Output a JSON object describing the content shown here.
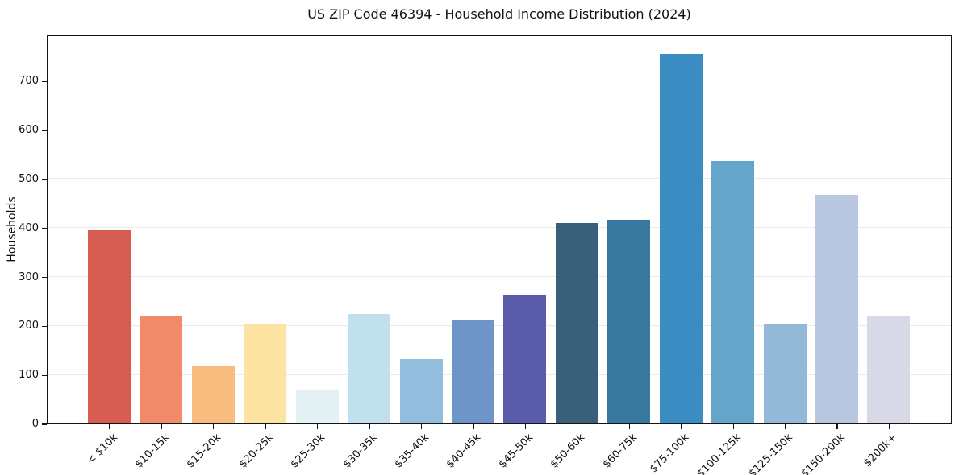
{
  "chart_data": {
    "type": "bar",
    "title": "US ZIP Code 46394 - Household Income Distribution (2024)",
    "xlabel": "",
    "ylabel": "Households",
    "categories": [
      "< $10k",
      "$10-15k",
      "$15-20k",
      "$20-25k",
      "$25-30k",
      "$30-35k",
      "$35-40k",
      "$40-45k",
      "$45-50k",
      "$50-60k",
      "$60-75k",
      "$75-100k",
      "$100-125k",
      "$125-150k",
      "$150-200k",
      "$200k+"
    ],
    "values": [
      394,
      219,
      117,
      204,
      67,
      224,
      131,
      211,
      263,
      410,
      416,
      755,
      536,
      203,
      467,
      218
    ],
    "bar_colors": [
      "#d75c52",
      "#f18a68",
      "#f9bd80",
      "#fce3a2",
      "#e4f1f4",
      "#bfe0ec",
      "#93bddc",
      "#6f94c8",
      "#5a5ca9",
      "#3a5f78",
      "#37789e",
      "#3a8cc2",
      "#63a6ca",
      "#93b8d8",
      "#b9c8e0",
      "#d7d9e7"
    ],
    "ylim": [
      0,
      794
    ],
    "yticks": [
      0,
      100,
      200,
      300,
      400,
      500,
      600,
      700
    ],
    "grid": "horizontal",
    "grid_color": "#e9e9e9",
    "legend": "none"
  }
}
